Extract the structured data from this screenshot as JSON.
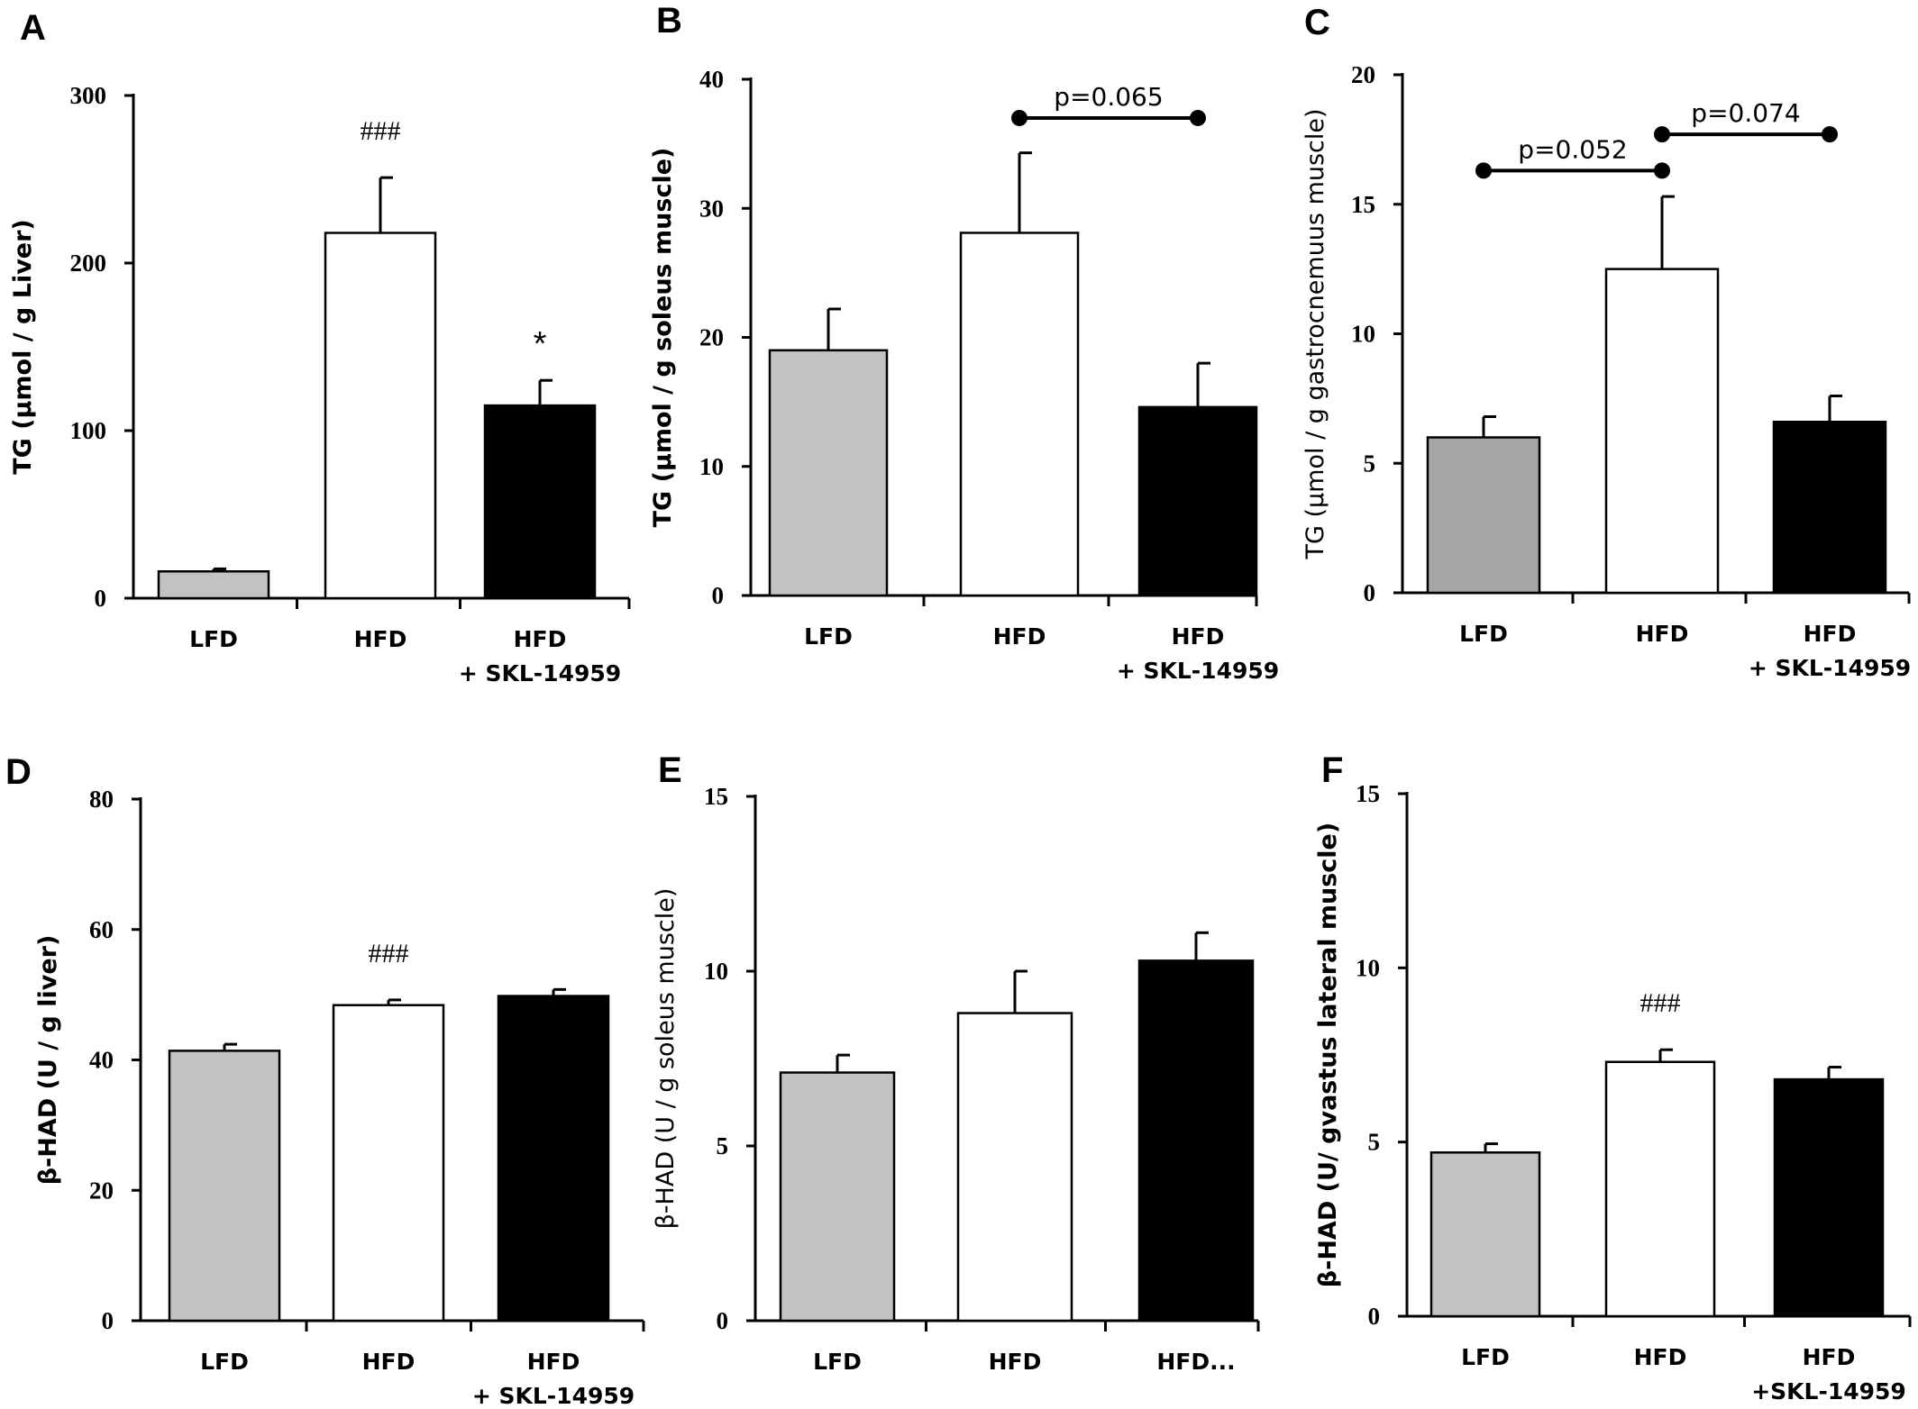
{
  "chart_data": [
    {
      "panel": "A",
      "type": "bar",
      "categories": [
        [
          "LFD"
        ],
        [
          "HFD"
        ],
        [
          "HFD",
          "+ SKL-14959"
        ]
      ],
      "values": [
        16,
        218,
        115
      ],
      "errors": [
        1.5,
        33,
        15
      ],
      "bar_colors": [
        "#c2c2c2",
        "#ffffff",
        "#000000"
      ],
      "ylabel": "TG (μmol / g Liver)",
      "ylim": [
        0,
        300
      ],
      "yticks": [
        "0",
        "100",
        "200",
        "300"
      ],
      "annotations": [
        {
          "category_index": 1,
          "text": "###"
        },
        {
          "category_index": 2,
          "text": "*"
        }
      ],
      "brackets": []
    },
    {
      "panel": "B",
      "type": "bar",
      "categories": [
        [
          "LFD"
        ],
        [
          "HFD"
        ],
        [
          "HFD",
          "+ SKL-14959"
        ]
      ],
      "values": [
        19,
        28.1,
        14.6
      ],
      "errors": [
        3.2,
        6.2,
        3.4
      ],
      "bar_colors": [
        "#c2c2c2",
        "#ffffff",
        "#000000"
      ],
      "ylabel": "TG (μmol / g soleus muscle)",
      "ylim": [
        0,
        40
      ],
      "yticks": [
        "0",
        "10",
        "20",
        "30",
        "40"
      ],
      "annotations": [],
      "brackets": [
        {
          "from": 1,
          "to": 2,
          "y": 37,
          "text": "p=0.065"
        }
      ]
    },
    {
      "panel": "C",
      "type": "bar",
      "categories": [
        [
          "LFD"
        ],
        [
          "HFD"
        ],
        [
          "HFD",
          "+ SKL-14959"
        ]
      ],
      "values": [
        6.0,
        12.5,
        6.6
      ],
      "errors": [
        0.8,
        2.8,
        1.0
      ],
      "bar_colors": [
        "#a5a5a5",
        "#ffffff",
        "#000000"
      ],
      "ylabel": "TG (μmol / g gastrocnemuus muscle)",
      "ylim": [
        0,
        20
      ],
      "yticks": [
        "0",
        "5",
        "10",
        "15",
        "20"
      ],
      "annotations": [],
      "brackets": [
        {
          "from": 0,
          "to": 1,
          "y": 16.3,
          "text": "p=0.052"
        },
        {
          "from": 1,
          "to": 2,
          "y": 17.7,
          "text": "p=0.074"
        }
      ]
    },
    {
      "panel": "D",
      "type": "bar",
      "categories": [
        [
          "LFD"
        ],
        [
          "HFD"
        ],
        [
          "HFD",
          "+ SKL-14959"
        ]
      ],
      "values": [
        41.4,
        48.4,
        49.8
      ],
      "errors": [
        1.0,
        0.8,
        1.0
      ],
      "bar_colors": [
        "#c2c2c2",
        "#ffffff",
        "#000000"
      ],
      "ylabel": "β-HAD (U / g liver)",
      "ylim": [
        0,
        80
      ],
      "yticks": [
        "0",
        "20",
        "40",
        "60",
        "80"
      ],
      "annotations": [
        {
          "category_index": 1,
          "text": "###"
        }
      ],
      "brackets": []
    },
    {
      "panel": "E",
      "type": "bar",
      "categories": [
        [
          "LFD"
        ],
        [
          "HFD"
        ],
        [
          "HFD..."
        ]
      ],
      "values": [
        7.1,
        8.8,
        10.3
      ],
      "errors": [
        0.5,
        1.2,
        0.8
      ],
      "bar_colors": [
        "#c2c2c2",
        "#ffffff",
        "#000000"
      ],
      "ylabel": "β-HAD (U / g soleus muscle)",
      "ylim": [
        0,
        15
      ],
      "yticks": [
        "0",
        "5",
        "10",
        "15"
      ],
      "annotations": [],
      "brackets": []
    },
    {
      "panel": "F",
      "type": "bar",
      "categories": [
        [
          "LFD"
        ],
        [
          "HFD"
        ],
        [
          "HFD",
          "+SKL-14959"
        ]
      ],
      "values": [
        4.7,
        7.3,
        6.8
      ],
      "errors": [
        0.25,
        0.35,
        0.35
      ],
      "bar_colors": [
        "#c2c2c2",
        "#ffffff",
        "#000000"
      ],
      "ylabel": "β-HAD (U/ gvastus lateral muscle)",
      "ylim": [
        0,
        15
      ],
      "yticks": [
        "0",
        "5",
        "10",
        "15"
      ],
      "annotations": [
        {
          "category_index": 1,
          "text": "###"
        }
      ],
      "brackets": []
    }
  ]
}
